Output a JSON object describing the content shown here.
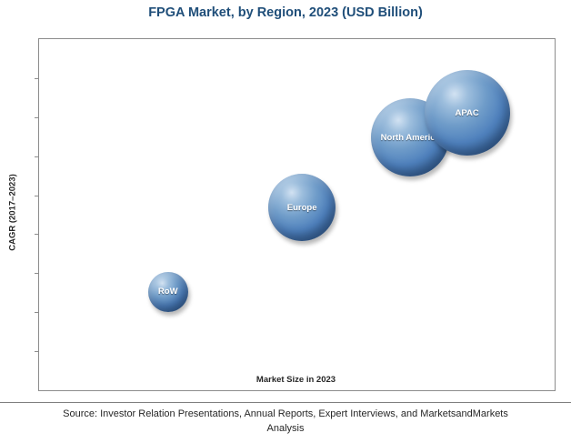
{
  "title": "FPGA Market, by Region, 2023 (USD Billion)",
  "chart_data": {
    "type": "scatter",
    "subtype": "bubble",
    "title": "FPGA Market, by Region, 2023 (USD Billion)",
    "xlabel": "Market Size in 2023",
    "ylabel": "CAGR (2017–2023)",
    "grid": false,
    "legend": "none",
    "axes_numeric_labels": false,
    "bubble_color": "#4f81bd",
    "points": [
      {
        "label": "RoW",
        "x": 0.25,
        "y": 0.28,
        "size": 22
      },
      {
        "label": "Europe",
        "x": 0.51,
        "y": 0.52,
        "size": 37
      },
      {
        "label": "North America",
        "x": 0.72,
        "y": 0.72,
        "size": 43
      },
      {
        "label": "APAC",
        "x": 0.83,
        "y": 0.79,
        "size": 47
      }
    ]
  },
  "source": {
    "line1": "Source: Investor Relation Presentations, Annual Reports, Expert Interviews, and MarketsandMarkets",
    "line2": "Analysis"
  }
}
